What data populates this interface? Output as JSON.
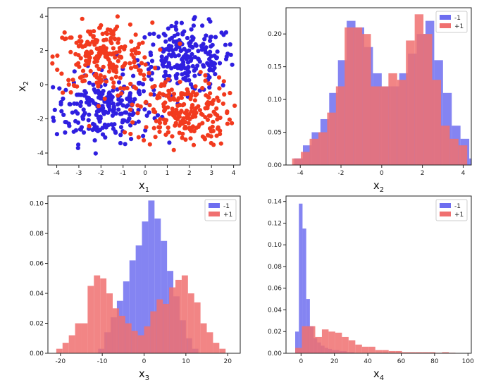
{
  "colors": {
    "neg": "#2f1fe0",
    "pos": "#f23a1e",
    "neg_hist": "#6e6ef0",
    "pos_hist": "#f07070"
  },
  "chart_data": [
    {
      "type": "scatter",
      "xlabel": "x",
      "xlabel_sub": "1",
      "ylabel": "x",
      "ylabel_sub": "2",
      "xlim": [
        -4.4,
        4.3
      ],
      "ylim": [
        -4.7,
        4.5
      ],
      "xticks": [
        -4,
        -3,
        -2,
        -1,
        0,
        1,
        2,
        3,
        4
      ],
      "yticks": [
        -4,
        -2,
        0,
        2,
        4
      ],
      "series": [
        {
          "label": "-1",
          "color": "neg",
          "clusters": [
            {
              "cx": -1.9,
              "cy": -1.4,
              "sx": 1.1,
              "sy": 1.0,
              "n": 230
            },
            {
              "cx": 1.9,
              "cy": 1.5,
              "sx": 1.1,
              "sy": 1.0,
              "n": 230
            }
          ]
        },
        {
          "label": "+1",
          "color": "pos",
          "clusters": [
            {
              "cx": -1.9,
              "cy": 1.6,
              "sx": 1.1,
              "sy": 1.0,
              "n": 230
            },
            {
              "cx": 1.8,
              "cy": -1.6,
              "sx": 1.1,
              "sy": 1.0,
              "n": 230
            }
          ]
        }
      ]
    },
    {
      "type": "histogram",
      "xlabel": "x",
      "xlabel_sub": "2",
      "xlim": [
        -4.7,
        4.4
      ],
      "ylim": [
        0,
        0.24
      ],
      "xticks": [
        -4,
        -2,
        0,
        2,
        4
      ],
      "yticks": [
        0.0,
        0.05,
        0.1,
        0.15,
        0.2
      ],
      "legend": [
        "-1",
        "+1"
      ],
      "series": [
        {
          "name": "-1",
          "color": "neg_hist",
          "start": -4.3,
          "width": 0.43,
          "values": [
            0.01,
            0.03,
            0.05,
            0.07,
            0.11,
            0.16,
            0.22,
            0.21,
            0.18,
            0.14,
            0.12,
            0.12,
            0.14,
            0.17,
            0.2,
            0.22,
            0.16,
            0.11,
            0.06,
            0.04,
            0.01
          ]
        },
        {
          "name": "+1",
          "color": "pos_hist",
          "start": -4.4,
          "width": 0.43,
          "values": [
            0.01,
            0.02,
            0.04,
            0.05,
            0.08,
            0.12,
            0.21,
            0.21,
            0.2,
            0.12,
            0.12,
            0.14,
            0.13,
            0.19,
            0.23,
            0.2,
            0.13,
            0.06,
            0.04,
            0.03
          ]
        }
      ]
    },
    {
      "type": "histogram",
      "xlabel": "x",
      "xlabel_sub": "3",
      "xlim": [
        -23,
        23
      ],
      "ylim": [
        0,
        0.105
      ],
      "xticks": [
        -20,
        -10,
        0,
        10,
        20
      ],
      "yticks": [
        0.0,
        0.02,
        0.04,
        0.06,
        0.08,
        0.1
      ],
      "legend": [
        "-1",
        "+1"
      ],
      "series": [
        {
          "name": "-1",
          "color": "neg_hist",
          "start": -11,
          "width": 1.5,
          "values": [
            0.003,
            0.014,
            0.024,
            0.035,
            0.048,
            0.062,
            0.072,
            0.088,
            0.102,
            0.09,
            0.075,
            0.055,
            0.038,
            0.022,
            0.01,
            0.003
          ]
        },
        {
          "name": "+1",
          "color": "pos_hist",
          "start": -21,
          "width": 1.5,
          "values": [
            0.003,
            0.007,
            0.012,
            0.02,
            0.02,
            0.045,
            0.052,
            0.05,
            0.04,
            0.03,
            0.025,
            0.02,
            0.015,
            0.012,
            0.018,
            0.028,
            0.036,
            0.033,
            0.044,
            0.049,
            0.052,
            0.04,
            0.034,
            0.02,
            0.014,
            0.007,
            0.003
          ]
        }
      ]
    },
    {
      "type": "histogram",
      "xlabel": "x",
      "xlabel_sub": "4",
      "xlim": [
        -9,
        102
      ],
      "ylim": [
        0,
        0.145
      ],
      "xticks": [
        0,
        20,
        40,
        60,
        80,
        100
      ],
      "yticks": [
        0.0,
        0.02,
        0.04,
        0.06,
        0.08,
        0.1,
        0.12,
        0.14
      ],
      "legend": [
        "-1",
        "+1"
      ],
      "series": [
        {
          "name": "-1",
          "color": "neg_hist",
          "start": -3.5,
          "width": 2.2,
          "values": [
            0.02,
            0.138,
            0.115,
            0.05,
            0.025,
            0.014,
            0.01,
            0.007,
            0.005,
            0.004,
            0.003,
            0.003,
            0.002,
            0.002,
            0.001,
            0.001
          ]
        },
        {
          "name": "+1",
          "color": "pos_hist",
          "start": -3.5,
          "width": 4,
          "values": [
            0.005,
            0.025,
            0.025,
            0.015,
            0.022,
            0.02,
            0.019,
            0.015,
            0.012,
            0.008,
            0.006,
            0.006,
            0.003,
            0.003,
            0.002,
            0.002,
            0.001,
            0.001,
            0.001,
            0.001,
            0.001,
            0.0005,
            0.001,
            0.0005,
            0.0003
          ]
        }
      ]
    }
  ]
}
